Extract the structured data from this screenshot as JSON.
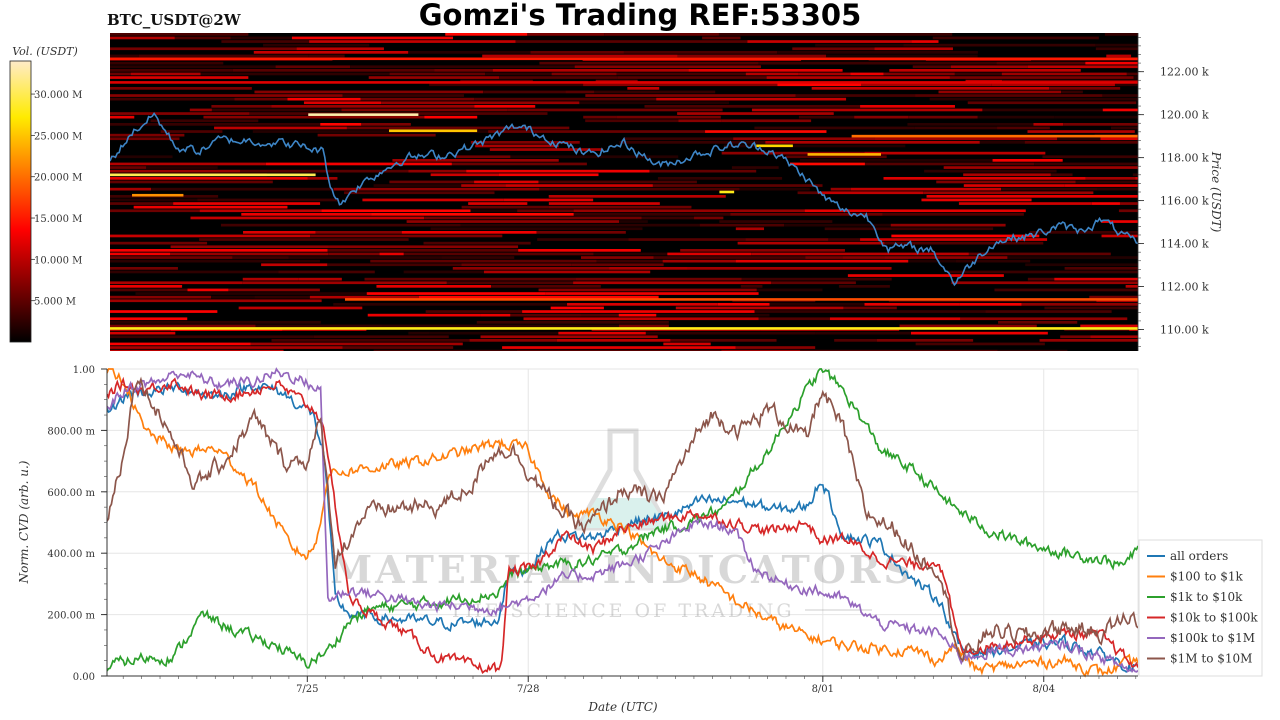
{
  "title": "Gomzi's Trading REF:53305",
  "pair_label": "BTC_USDT@2W",
  "watermark": {
    "name": "MATERIAL INDICATORS",
    "tagline": "THE SCIENCE OF TRADING"
  },
  "colorbar": {
    "label": "Vol. (USDT)",
    "ticks": [
      "30.000 M",
      "25.000 M",
      "20.000 M",
      "15.000 M",
      "10.000 M",
      "5.000 M"
    ],
    "tick_values": [
      30,
      25,
      20,
      15,
      10,
      5
    ],
    "max": 34
  },
  "chart_data": [
    {
      "type": "heatmap",
      "ylabel": "Price (USDT)",
      "ylim": [
        109.0,
        123.8
      ],
      "yticks": [
        110,
        112,
        114,
        116,
        118,
        120,
        122
      ],
      "ytick_labels": [
        "110.00 k",
        "112.00 k",
        "114.00 k",
        "116.00 k",
        "118.00 k",
        "120.00 k",
        "122.00 k"
      ],
      "x_range_days": [
        0,
        14
      ],
      "price_series": {
        "color": "#3d85c6",
        "t": [
          0,
          0.3,
          0.6,
          0.9,
          1.2,
          1.5,
          2.0,
          2.5,
          2.9,
          3.0,
          3.15,
          3.3,
          3.6,
          4.0,
          4.5,
          5.0,
          5.5,
          5.6,
          6.0,
          6.5,
          7.0,
          7.5,
          8.0,
          8.5,
          9.0,
          9.5,
          9.7,
          10.0,
          10.3,
          10.6,
          10.9,
          11.2,
          11.5,
          11.8,
          12.0,
          12.3,
          12.6,
          12.9,
          13.2,
          13.5,
          14.0
        ],
        "price": [
          117.8,
          119.2,
          120.0,
          118.5,
          118.3,
          118.8,
          118.8,
          118.6,
          118.3,
          116.7,
          115.8,
          116.5,
          117.2,
          118.0,
          118.1,
          118.6,
          119.4,
          119.4,
          118.9,
          118.1,
          118.7,
          117.6,
          118.2,
          118.6,
          118.4,
          117.0,
          116.2,
          115.5,
          115.3,
          113.8,
          113.8,
          113.7,
          112.2,
          113.3,
          114.0,
          114.3,
          114.4,
          114.8,
          114.6,
          115.1,
          113.9
        ]
      },
      "liquidity_bands": [
        {
          "price": 110.05,
          "start": 0,
          "end": 14,
          "volume": 28
        },
        {
          "price": 119.0,
          "start": 10.1,
          "end": 14,
          "volume": 20
        },
        {
          "price": 120.0,
          "start": 2.7,
          "end": 4.2,
          "volume": 33
        },
        {
          "price": 119.25,
          "start": 3.8,
          "end": 5.0,
          "volume": 25
        },
        {
          "price": 117.2,
          "start": 0,
          "end": 2.8,
          "volume": 30
        },
        {
          "price": 116.25,
          "start": 0.3,
          "end": 1.0,
          "volume": 22
        },
        {
          "price": 116.4,
          "start": 8.3,
          "end": 8.5,
          "volume": 28
        },
        {
          "price": 118.55,
          "start": 8.8,
          "end": 9.3,
          "volume": 26
        },
        {
          "price": 118.15,
          "start": 9.5,
          "end": 10.5,
          "volume": 24
        },
        {
          "price": 111.4,
          "start": 3.2,
          "end": 14,
          "volume": 18
        },
        {
          "price": 121.5,
          "start": 0,
          "end": 14,
          "volume": 12
        },
        {
          "price": 122.6,
          "start": 0,
          "end": 14,
          "volume": 15
        }
      ]
    },
    {
      "type": "line",
      "xlabel": "Date (UTC)",
      "ylabel": "Norm. CVD (arb. u.)",
      "ylim": [
        0,
        1
      ],
      "x_range_days": [
        0,
        14
      ],
      "yticks": [
        0,
        0.2,
        0.4,
        0.6,
        0.8,
        1.0
      ],
      "ytick_labels": [
        "0.00",
        "200.00 m",
        "400.00 m",
        "600.00 m",
        "800.00 m",
        "1.00"
      ],
      "xticks": [
        2.72,
        5.72,
        9.72,
        12.72
      ],
      "xtick_labels": [
        "7/25",
        "7/28",
        "8/01",
        "8/04"
      ],
      "series": [
        {
          "name": "all orders",
          "color": "#1f77b4",
          "t": [
            0,
            0.3,
            0.7,
            1.0,
            1.5,
            2.0,
            2.4,
            2.8,
            2.95,
            3.1,
            3.3,
            3.7,
            4.2,
            4.7,
            5.3,
            5.45,
            5.7,
            6.1,
            6.6,
            7.1,
            7.6,
            8.1,
            8.6,
            9.1,
            9.5,
            9.7,
            10.0,
            10.5,
            11.0,
            11.3,
            11.6,
            12.0,
            12.5,
            13.0,
            13.5,
            14.0
          ],
          "y": [
            0.86,
            0.92,
            0.93,
            0.94,
            0.91,
            0.95,
            0.92,
            0.85,
            0.72,
            0.25,
            0.2,
            0.19,
            0.18,
            0.17,
            0.18,
            0.33,
            0.35,
            0.46,
            0.45,
            0.5,
            0.52,
            0.57,
            0.57,
            0.54,
            0.55,
            0.64,
            0.46,
            0.43,
            0.3,
            0.25,
            0.08,
            0.08,
            0.1,
            0.11,
            0.07,
            0.02
          ]
        },
        {
          "name": "$100 to $1k",
          "color": "#ff7f0e",
          "t": [
            0,
            0.25,
            0.5,
            1.0,
            1.5,
            2.0,
            2.5,
            2.72,
            2.85,
            3.0,
            3.3,
            4.0,
            4.5,
            5.0,
            5.3,
            5.7,
            6.0,
            6.3,
            6.6,
            7.0,
            7.5,
            8.0,
            8.5,
            9.0,
            9.5,
            10.0,
            10.5,
            11.0,
            11.3,
            11.5,
            11.8,
            12.5,
            13.0,
            13.5,
            14.0
          ],
          "y": [
            0.99,
            0.96,
            0.8,
            0.73,
            0.74,
            0.62,
            0.42,
            0.39,
            0.44,
            0.66,
            0.67,
            0.69,
            0.71,
            0.74,
            0.76,
            0.74,
            0.6,
            0.52,
            0.53,
            0.49,
            0.38,
            0.33,
            0.25,
            0.18,
            0.13,
            0.1,
            0.09,
            0.08,
            0.05,
            0.1,
            0.02,
            0.04,
            0.05,
            0.01,
            0.05
          ]
        },
        {
          "name": "$1k to $10k",
          "color": "#2ca02c",
          "t": [
            0,
            0.1,
            0.5,
            0.9,
            1.3,
            1.8,
            2.3,
            2.7,
            3.0,
            3.3,
            3.6,
            4.0,
            4.5,
            5.0,
            5.3,
            5.5,
            6.0,
            6.5,
            7.0,
            7.5,
            7.8,
            8.4,
            9.0,
            9.3,
            9.7,
            10.0,
            10.5,
            11.0,
            11.5,
            12.0,
            12.5,
            13.0,
            13.5,
            13.8,
            14.0
          ],
          "y": [
            0.02,
            0.04,
            0.06,
            0.06,
            0.2,
            0.14,
            0.1,
            0.04,
            0.08,
            0.18,
            0.22,
            0.23,
            0.24,
            0.26,
            0.27,
            0.33,
            0.36,
            0.37,
            0.41,
            0.48,
            0.49,
            0.55,
            0.74,
            0.86,
            1.0,
            0.93,
            0.74,
            0.66,
            0.55,
            0.47,
            0.43,
            0.4,
            0.38,
            0.36,
            0.41
          ]
        },
        {
          "name": "$10k to $100k",
          "color": "#d62728",
          "t": [
            0,
            0.2,
            0.5,
            0.9,
            1.3,
            1.8,
            2.3,
            2.8,
            2.95,
            3.0,
            3.3,
            3.6,
            4.0,
            4.5,
            5.0,
            5.35,
            5.45,
            5.8,
            6.2,
            6.6,
            7.0,
            7.5,
            8.0,
            8.5,
            9.0,
            9.5,
            9.7,
            10.0,
            10.5,
            11.0,
            11.3,
            11.6,
            12.0,
            12.5,
            13.0,
            13.5,
            14.0
          ],
          "y": [
            0.92,
            0.95,
            0.93,
            0.96,
            0.91,
            0.92,
            0.95,
            0.87,
            0.82,
            0.7,
            0.25,
            0.2,
            0.15,
            0.06,
            0.03,
            0.02,
            0.34,
            0.35,
            0.46,
            0.41,
            0.48,
            0.51,
            0.53,
            0.5,
            0.47,
            0.5,
            0.44,
            0.45,
            0.38,
            0.36,
            0.38,
            0.08,
            0.1,
            0.12,
            0.14,
            0.13,
            0.02
          ]
        },
        {
          "name": "$100k to $1M",
          "color": "#9467bd",
          "t": [
            0,
            0.3,
            0.7,
            1.0,
            1.5,
            2.0,
            2.3,
            2.6,
            2.9,
            3.0,
            3.3,
            3.8,
            4.3,
            4.8,
            5.3,
            5.7,
            6.2,
            6.6,
            7.0,
            7.5,
            8.0,
            8.5,
            8.8,
            9.2,
            9.6,
            10.0,
            10.5,
            11.0,
            11.3,
            11.6,
            12.0,
            12.5,
            13.0,
            13.5,
            14.0
          ],
          "y": [
            0.88,
            0.94,
            0.96,
            0.99,
            0.95,
            0.96,
            0.99,
            0.97,
            0.93,
            0.25,
            0.28,
            0.26,
            0.23,
            0.23,
            0.22,
            0.25,
            0.32,
            0.33,
            0.36,
            0.42,
            0.5,
            0.48,
            0.35,
            0.3,
            0.28,
            0.25,
            0.17,
            0.15,
            0.14,
            0.06,
            0.08,
            0.09,
            0.1,
            0.06,
            0.01
          ]
        },
        {
          "name": "$1M to $10M",
          "color": "#8c564b",
          "t": [
            0,
            0.2,
            0.4,
            0.8,
            1.2,
            1.6,
            2.0,
            2.4,
            2.7,
            2.9,
            3.1,
            3.5,
            4.0,
            4.5,
            5.0,
            5.2,
            5.5,
            5.9,
            6.2,
            6.5,
            7.0,
            7.5,
            8.0,
            8.2,
            8.6,
            9.0,
            9.5,
            9.7,
            10.0,
            10.3,
            10.7,
            11.0,
            11.3,
            11.6,
            12.0,
            12.5,
            13.0,
            13.5,
            13.9,
            14.0
          ],
          "y": [
            0.52,
            0.7,
            0.98,
            0.82,
            0.62,
            0.7,
            0.84,
            0.7,
            0.7,
            0.82,
            0.38,
            0.53,
            0.55,
            0.55,
            0.63,
            0.73,
            0.74,
            0.61,
            0.53,
            0.48,
            0.61,
            0.57,
            0.78,
            0.85,
            0.8,
            0.87,
            0.77,
            0.93,
            0.8,
            0.53,
            0.48,
            0.39,
            0.35,
            0.05,
            0.15,
            0.13,
            0.16,
            0.14,
            0.2,
            0.17
          ]
        }
      ],
      "legend": "lower-right"
    }
  ]
}
